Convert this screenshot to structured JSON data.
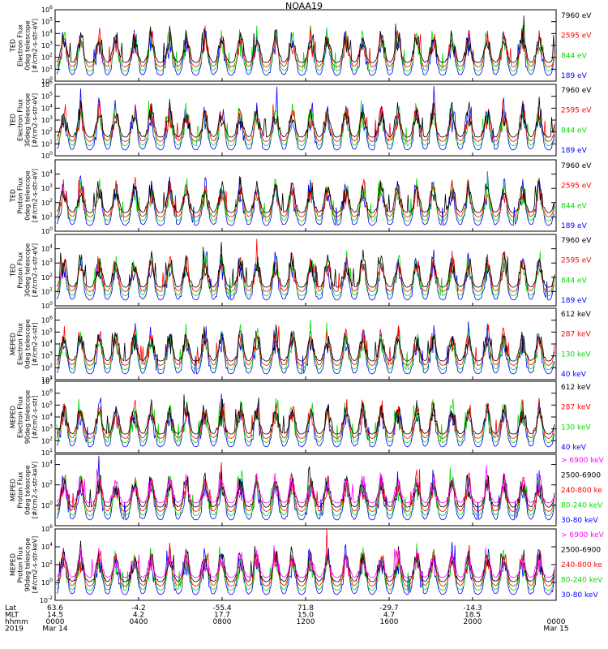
{
  "title": "NOAA19",
  "colors": {
    "black": "#000000",
    "red": "#ff0000",
    "green": "#00dd00",
    "blue": "#0000ff",
    "magenta": "#ff00ff"
  },
  "chart_data": {
    "type": "line",
    "panels": [
      {
        "ylabel": [
          "TED",
          "Electron Flux",
          "0deg telescope",
          "[#/cm2-s-str-eV]"
        ],
        "yscale": "log",
        "ylim": [
          1,
          1000000
        ],
        "yticks": [
          {
            "v": 1,
            "e": "0"
          },
          {
            "v": 10,
            "e": "1"
          },
          {
            "v": 100,
            "e": "2"
          },
          {
            "v": 1000,
            "e": "3"
          },
          {
            "v": 10000,
            "e": "4"
          },
          {
            "v": 100000,
            "e": "5"
          },
          {
            "v": 1000000,
            "e": "6"
          }
        ],
        "legend": [
          {
            "text": "7960 eV",
            "color": "#000000"
          },
          {
            "text": "2595 eV",
            "color": "#ff0000"
          },
          {
            "text": "844 eV",
            "color": "#00dd00"
          },
          {
            "text": "189 eV",
            "color": "#0000ff"
          }
        ]
      },
      {
        "ylabel": [
          "TED",
          "Electron Flux",
          "30deg telescope",
          "[#/cm2-s-str-eV]"
        ],
        "yscale": "log",
        "ylim": [
          1,
          1000000
        ],
        "yticks": [
          {
            "v": 1,
            "e": "0"
          },
          {
            "v": 10,
            "e": "1"
          },
          {
            "v": 100,
            "e": "2"
          },
          {
            "v": 1000,
            "e": "3"
          },
          {
            "v": 10000,
            "e": "4"
          },
          {
            "v": 100000,
            "e": "5"
          },
          {
            "v": 1000000,
            "e": "6"
          }
        ],
        "legend": [
          {
            "text": "7960 eV",
            "color": "#000000"
          },
          {
            "text": "2595 eV",
            "color": "#ff0000"
          },
          {
            "text": "844 eV",
            "color": "#00dd00"
          },
          {
            "text": "189 eV",
            "color": "#0000ff"
          }
        ]
      },
      {
        "ylabel": [
          "TED",
          "Proton Flux",
          "0deg telescope",
          "[#/cm2-s-str-eV]"
        ],
        "yscale": "log",
        "ylim": [
          1,
          100000
        ],
        "yticks": [
          {
            "v": 1,
            "e": "0"
          },
          {
            "v": 10,
            "e": "1"
          },
          {
            "v": 100,
            "e": "2"
          },
          {
            "v": 1000,
            "e": "3"
          },
          {
            "v": 10000,
            "e": "4"
          }
        ],
        "legend": [
          {
            "text": "7960 eV",
            "color": "#000000"
          },
          {
            "text": "2595 eV",
            "color": "#ff0000"
          },
          {
            "text": "844 eV",
            "color": "#00dd00"
          },
          {
            "text": "189 eV",
            "color": "#0000ff"
          }
        ]
      },
      {
        "ylabel": [
          "TED",
          "Proton Flux",
          "30deg telescope",
          "[#/cm2-s-str-eV]"
        ],
        "yscale": "log",
        "ylim": [
          1,
          100000
        ],
        "yticks": [
          {
            "v": 1,
            "e": "0"
          },
          {
            "v": 10,
            "e": "1"
          },
          {
            "v": 100,
            "e": "2"
          },
          {
            "v": 1000,
            "e": "3"
          },
          {
            "v": 10000,
            "e": "4"
          }
        ],
        "legend": [
          {
            "text": "7960 eV",
            "color": "#000000"
          },
          {
            "text": "2595 eV",
            "color": "#ff0000"
          },
          {
            "text": "844 eV",
            "color": "#00dd00"
          },
          {
            "text": "189 eV",
            "color": "#0000ff"
          }
        ]
      },
      {
        "ylabel": [
          "MEPED",
          "Electron Flux",
          "0deg telescope",
          "[#/cm2-s-str]"
        ],
        "yscale": "log",
        "ylim": [
          10,
          10000000
        ],
        "yticks": [
          {
            "v": 10,
            "e": "1"
          },
          {
            "v": 100,
            "e": "2"
          },
          {
            "v": 1000,
            "e": "3"
          },
          {
            "v": 10000,
            "e": "4"
          },
          {
            "v": 100000,
            "e": "5"
          },
          {
            "v": 1000000,
            "e": "6"
          }
        ],
        "legend": [
          {
            "text": "612 keV",
            "color": "#000000"
          },
          {
            "text": "287 keV",
            "color": "#ff0000"
          },
          {
            "text": "130 keV",
            "color": "#00dd00"
          },
          {
            "text": "40 keV",
            "color": "#0000ff"
          }
        ]
      },
      {
        "ylabel": [
          "MEPED",
          "Electron Flux",
          "90deg telescope",
          "[#/cm2-s-str]"
        ],
        "yscale": "log",
        "ylim": [
          10,
          10000000
        ],
        "yticks": [
          {
            "v": 10,
            "e": "1"
          },
          {
            "v": 100,
            "e": "2"
          },
          {
            "v": 1000,
            "e": "3"
          },
          {
            "v": 10000,
            "e": "4"
          },
          {
            "v": 100000,
            "e": "5"
          },
          {
            "v": 1000000,
            "e": "6"
          },
          {
            "v": 10000000,
            "e": "7"
          }
        ],
        "legend": [
          {
            "text": "612 keV",
            "color": "#000000"
          },
          {
            "text": "287 keV",
            "color": "#ff0000"
          },
          {
            "text": "130 keV",
            "color": "#00dd00"
          },
          {
            "text": "40 keV",
            "color": "#0000ff"
          }
        ]
      },
      {
        "ylabel": [
          "MEPED",
          "Proton Flux",
          "0deg telescope",
          "[#/cm2-s-str-keV]"
        ],
        "yscale": "log",
        "ylim": [
          0.01,
          100000
        ],
        "yticks": [
          {
            "v": 1,
            "e": "0"
          },
          {
            "v": 100,
            "e": "2"
          },
          {
            "v": 10000,
            "e": "4"
          }
        ],
        "legend": [
          {
            "text": "> 6900 keV",
            "color": "#ff00ff"
          },
          {
            "text": "2500-6900",
            "color": "#000000"
          },
          {
            "text": "240-800 ke",
            "color": "#ff0000"
          },
          {
            "text": "80-240 keV",
            "color": "#00dd00"
          },
          {
            "text": "30-80 keV",
            "color": "#0000ff"
          }
        ]
      },
      {
        "ylabel": [
          "MEPED",
          "Proton Flux",
          "90deg telescope",
          "[#/cm2-s-str-keV]"
        ],
        "yscale": "log",
        "ylim": [
          0.01,
          1000000
        ],
        "yticks": [
          {
            "v": 0.01,
            "e": "-2"
          },
          {
            "v": 1,
            "e": "0"
          },
          {
            "v": 100,
            "e": "2"
          },
          {
            "v": 10000,
            "e": "4"
          },
          {
            "v": 1000000,
            "e": "6"
          }
        ],
        "legend": [
          {
            "text": "> 6900 keV",
            "color": "#ff00ff"
          },
          {
            "text": "2500-6900",
            "color": "#000000"
          },
          {
            "text": "240-800 ke",
            "color": "#ff0000"
          },
          {
            "text": "80-240 keV",
            "color": "#00dd00"
          },
          {
            "text": "30-80 keV",
            "color": "#0000ff"
          }
        ]
      }
    ],
    "x_axis": {
      "row_labels": [
        "Lat",
        "MLT",
        "hhmm",
        "2019"
      ],
      "ticks": [
        {
          "lat": "63.6",
          "mlt": "14.5",
          "hhmm": "0000",
          "date": "Mar 14"
        },
        {
          "lat": "-4.2",
          "mlt": "4.2",
          "hhmm": "0400",
          "date": ""
        },
        {
          "lat": "-55.4",
          "mlt": "17.7",
          "hhmm": "0800",
          "date": ""
        },
        {
          "lat": "71.8",
          "mlt": "15.0",
          "hhmm": "1200",
          "date": ""
        },
        {
          "lat": "-29.7",
          "mlt": "4.7",
          "hhmm": "1600",
          "date": ""
        },
        {
          "lat": "-14.3",
          "mlt": "18.5",
          "hhmm": "2000",
          "date": ""
        },
        {
          "lat": "",
          "mlt": "",
          "hhmm": "0000",
          "date": "Mar 15"
        }
      ]
    }
  }
}
